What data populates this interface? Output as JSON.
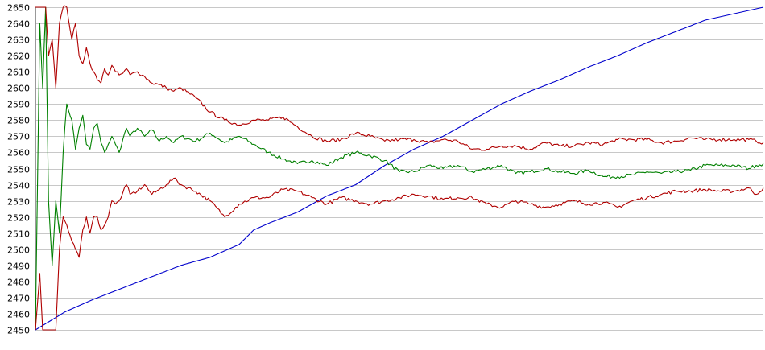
{
  "chart_data": {
    "type": "line",
    "title": "",
    "xlabel": "",
    "ylabel": "",
    "ylim": [
      2450,
      2650
    ],
    "xlim": [
      0,
      100
    ],
    "grid": true,
    "legend": "none",
    "yticks": [
      2650,
      2640,
      2630,
      2620,
      2610,
      2600,
      2590,
      2580,
      2570,
      2560,
      2550,
      2540,
      2530,
      2520,
      2510,
      2500,
      2490,
      2480,
      2470,
      2460,
      2450
    ],
    "series": [
      {
        "color": "#0000cc",
        "x": [
          0,
          4,
          8,
          12,
          16,
          20,
          24,
          28,
          30,
          32,
          36,
          40,
          44,
          48,
          52,
          56,
          60,
          64,
          68,
          72,
          76,
          80,
          84,
          88,
          92,
          96,
          100
        ],
        "y": [
          2450,
          2461,
          2469,
          2476,
          2483,
          2490,
          2495,
          2503,
          2512,
          2516,
          2523,
          2533,
          2540,
          2552,
          2562,
          2570,
          2580,
          2590,
          2598,
          2605,
          2613,
          2620,
          2628,
          2635,
          2642,
          2646,
          2650
        ]
      },
      {
        "color": "#008000",
        "x": [
          0,
          0.6,
          1,
          1.4,
          1.8,
          2.3,
          2.8,
          3.3,
          3.8,
          4.3,
          5.0,
          5.5,
          6.0,
          6.5,
          7.0,
          7.5,
          8.0,
          8.5,
          9.0,
          9.5,
          10.0,
          10.5,
          11.0,
          11.5,
          12.0,
          12.5,
          13.0,
          14.0,
          15.0,
          16.0,
          17.0,
          18.0,
          19.0,
          20.0,
          22.0,
          24.0,
          26.0,
          28.0,
          30.0,
          32.0,
          34.0,
          36.0,
          38.0,
          40.0,
          42.0,
          44.0,
          46.0,
          48.0,
          50.0,
          52.0,
          54.0,
          56.0,
          58.0,
          60.0,
          62.0,
          64.0,
          66.0,
          68.0,
          70.0,
          72.0,
          74.0,
          76.0,
          78.0,
          80.0,
          82.0,
          84.0,
          86.0,
          88.0,
          90.0,
          92.0,
          94.0,
          96.0,
          98.0,
          99.0,
          100.0
        ],
        "y": [
          2450,
          2640,
          2600,
          2650,
          2530,
          2490,
          2530,
          2510,
          2560,
          2590,
          2580,
          2562,
          2575,
          2583,
          2565,
          2562,
          2575,
          2578,
          2566,
          2560,
          2565,
          2570,
          2565,
          2560,
          2568,
          2575,
          2570,
          2575,
          2570,
          2574,
          2567,
          2570,
          2566,
          2570,
          2567,
          2572,
          2566,
          2570,
          2565,
          2560,
          2556,
          2553,
          2555,
          2552,
          2557,
          2560,
          2558,
          2555,
          2548,
          2548,
          2552,
          2550,
          2552,
          2548,
          2550,
          2552,
          2547,
          2548,
          2550,
          2548,
          2547,
          2549,
          2545,
          2545,
          2546,
          2548,
          2547,
          2548,
          2549,
          2552,
          2552,
          2552,
          2550,
          2552,
          2553
        ]
      },
      {
        "color": "#b00000",
        "x": [
          0,
          0.6,
          1,
          1.4,
          1.8,
          2.3,
          2.8,
          3.3,
          3.8,
          4.3,
          5.0,
          5.5,
          6.0,
          6.5,
          7.0,
          7.5,
          8.0,
          8.5,
          9.0,
          9.5,
          10.0,
          10.5,
          11.0,
          11.5,
          12.0,
          12.5,
          13.0,
          14.0,
          15.0,
          16.0,
          17.0,
          18.0,
          19.0,
          20.0,
          22.0,
          24.0,
          26.0,
          28.0,
          30.0,
          32.0,
          34.0,
          36.0,
          38.0,
          40.0,
          42.0,
          44.0,
          46.0,
          48.0,
          50.0,
          52.0,
          54.0,
          56.0,
          58.0,
          60.0,
          62.0,
          64.0,
          66.0,
          68.0,
          70.0,
          72.0,
          74.0,
          76.0,
          78.0,
          80.0,
          82.0,
          84.0,
          86.0,
          88.0,
          90.0,
          92.0,
          94.0,
          96.0,
          98.0,
          99.0,
          100.0
        ],
        "y": [
          2650,
          2650,
          2650,
          2650,
          2620,
          2630,
          2600,
          2640,
          2650,
          2650,
          2630,
          2640,
          2620,
          2615,
          2625,
          2615,
          2610,
          2605,
          2603,
          2612,
          2608,
          2614,
          2610,
          2608,
          2609,
          2612,
          2608,
          2610,
          2607,
          2603,
          2602,
          2600,
          2598,
          2600,
          2594,
          2585,
          2580,
          2577,
          2580,
          2580,
          2582,
          2576,
          2570,
          2567,
          2568,
          2572,
          2570,
          2567,
          2568,
          2568,
          2566,
          2568,
          2567,
          2562,
          2562,
          2564,
          2564,
          2562,
          2566,
          2564,
          2564,
          2566,
          2565,
          2568,
          2568,
          2568,
          2566,
          2567,
          2569,
          2568,
          2568,
          2568,
          2568,
          2567,
          2566
        ]
      },
      {
        "color": "#b00000",
        "x": [
          0,
          0.6,
          1,
          1.4,
          1.8,
          2.3,
          2.8,
          3.3,
          3.8,
          4.3,
          5.0,
          5.5,
          6.0,
          6.5,
          7.0,
          7.5,
          8.0,
          8.5,
          9.0,
          9.5,
          10.0,
          10.5,
          11.0,
          11.5,
          12.0,
          12.5,
          13.0,
          14.0,
          15.0,
          16.0,
          17.0,
          18.0,
          19.0,
          20.0,
          22.0,
          24.0,
          26.0,
          28.0,
          30.0,
          32.0,
          34.0,
          36.0,
          38.0,
          40.0,
          42.0,
          44.0,
          46.0,
          48.0,
          50.0,
          52.0,
          54.0,
          56.0,
          58.0,
          60.0,
          62.0,
          64.0,
          66.0,
          68.0,
          70.0,
          72.0,
          74.0,
          76.0,
          78.0,
          80.0,
          82.0,
          84.0,
          86.0,
          88.0,
          90.0,
          92.0,
          94.0,
          96.0,
          98.0,
          99.0,
          100.0
        ],
        "y": [
          2450,
          2485,
          2450,
          2450,
          2450,
          2450,
          2450,
          2500,
          2520,
          2515,
          2505,
          2500,
          2495,
          2512,
          2520,
          2510,
          2520,
          2520,
          2512,
          2515,
          2520,
          2530,
          2528,
          2530,
          2535,
          2540,
          2534,
          2536,
          2540,
          2534,
          2537,
          2540,
          2544,
          2540,
          2536,
          2530,
          2520,
          2528,
          2532,
          2532,
          2537,
          2536,
          2532,
          2528,
          2532,
          2530,
          2528,
          2530,
          2532,
          2534,
          2533,
          2531,
          2532,
          2532,
          2528,
          2526,
          2530,
          2528,
          2526,
          2528,
          2530,
          2528,
          2529,
          2526,
          2530,
          2532,
          2534,
          2536,
          2536,
          2537,
          2536,
          2536,
          2538,
          2534,
          2538
        ]
      }
    ]
  }
}
